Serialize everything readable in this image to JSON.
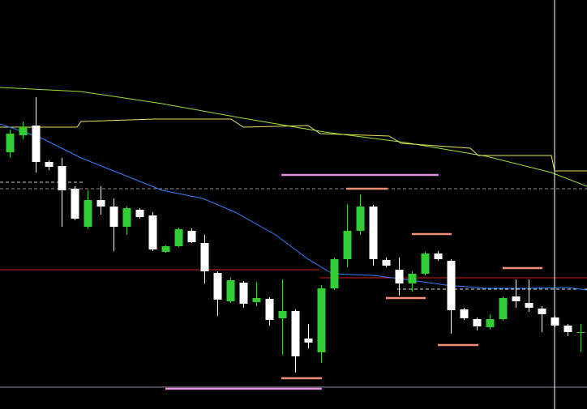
{
  "chart_data": {
    "type": "candlestick",
    "xlim": [
      -0.75,
      44.5
    ],
    "ylim": [
      0,
      505
    ],
    "up_color": "#32cd32",
    "down_color": "#ffffff",
    "wick_color": "#ffffff",
    "background": "#000000",
    "open": [
      317,
      338,
      350,
      305,
      300,
      272,
      225,
      258,
      250,
      225,
      246,
      239,
      194,
      201,
      220,
      205,
      168,
      133,
      156,
      132,
      136,
      112,
      121,
      87,
      70,
      149,
      185,
      220,
      250,
      184,
      172,
      155,
      167,
      192,
      183,
      123,
      111,
      101,
      111,
      139,
      131,
      124,
      113,
      103,
      94
    ],
    "high": [
      345,
      355,
      385,
      307,
      310,
      275,
      270,
      275,
      260,
      250,
      248,
      243,
      202,
      224,
      223,
      215,
      170,
      162,
      158,
      157,
      138,
      160,
      123,
      105,
      153,
      187,
      253,
      265,
      252,
      187,
      187,
      170,
      194,
      195,
      185,
      125,
      113,
      117,
      139,
      160,
      160,
      127,
      115,
      105,
      105
    ],
    "low": [
      310,
      333,
      292,
      295,
      225,
      233,
      222,
      240,
      195,
      215,
      235,
      195,
      193,
      200,
      205,
      155,
      115,
      131,
      125,
      127,
      103,
      67,
      45,
      75,
      57,
      147,
      175,
      215,
      177,
      175,
      140,
      145,
      165,
      183,
      93,
      110,
      97,
      98,
      109,
      125,
      120,
      95,
      101,
      90,
      70
    ],
    "close": [
      340,
      348,
      305,
      299,
      270,
      235,
      258,
      250,
      225,
      248,
      237,
      197,
      201,
      222,
      206,
      170,
      135,
      159,
      130,
      137,
      110,
      121,
      65,
      82,
      149,
      185,
      220,
      250,
      185,
      177,
      155,
      167,
      192,
      185,
      122,
      112,
      102,
      111,
      137,
      133,
      125,
      117,
      103,
      95,
      95
    ],
    "lines": [
      {
        "color": "#9be03c",
        "x": [
          -0.75,
          5.5,
          11.75,
          18,
          24.25,
          30.5,
          36.75,
          41.75,
          44.5
        ],
        "values": [
          397,
          392,
          377,
          359,
          342,
          329,
          312,
          292,
          275
        ]
      },
      {
        "color": "#e6e65a",
        "x": [
          -0.75,
          5.19,
          5.5,
          11.125,
          17.06,
          18,
          23,
          23.94,
          29.25,
          30.19,
          35.5,
          36.125,
          41.75,
          42,
          44.5
        ],
        "values": [
          348,
          348,
          355,
          358,
          358,
          348,
          350,
          340,
          337,
          328,
          322,
          313,
          313,
          294,
          294
        ]
      },
      {
        "color": "#2f7fff",
        "x": [
          -0.75,
          2.375,
          5.5,
          8.625,
          11.75,
          14.875,
          17.375,
          20.5,
          23,
          24.875,
          28,
          30.5,
          33.625,
          36.75,
          39.875,
          43,
          44.5
        ],
        "values": [
          352,
          335,
          310,
          290,
          270,
          260,
          243,
          215,
          185,
          167,
          165,
          160,
          153,
          149,
          149,
          150,
          147
        ]
      }
    ],
    "segments": [
      {
        "color": "#d02020",
        "x": [
          -0.75,
          23.9
        ],
        "value": 172,
        "dashed": false
      },
      {
        "color": "#d02020",
        "x": [
          23.9,
          44.5
        ],
        "value": 162,
        "dashed": false
      },
      {
        "color": "#909090",
        "x": [
          -0.75,
          44.5
        ],
        "value": 272,
        "dashed": true
      },
      {
        "color": "#cccccc",
        "x": [
          -0.75,
          5.8
        ],
        "value": 280,
        "dashed": true
      },
      {
        "color": "#dddddd",
        "x": [
          29.875,
          44.5
        ],
        "value": 148,
        "dashed": true
      },
      {
        "color": "#8a8a9a",
        "x": [
          -0.75,
          44.5
        ],
        "value": 27,
        "dashed": false
      },
      {
        "color": "#e08ee0",
        "x": [
          20.94,
          33.06
        ],
        "value": 289,
        "dashed": false
      },
      {
        "color": "#e08ee0",
        "x": [
          12,
          24.06
        ],
        "value": 25,
        "dashed": false
      },
      {
        "color": "#f4907a",
        "x": [
          25.94,
          29.125
        ],
        "value": 272,
        "dashed": false
      },
      {
        "color": "#f4907a",
        "x": [
          31,
          34.06
        ],
        "value": 216,
        "dashed": false
      },
      {
        "color": "#f4907a",
        "x": [
          38,
          41.06
        ],
        "value": 174,
        "dashed": false
      },
      {
        "color": "#f4907a",
        "x": [
          29,
          32.06
        ],
        "value": 137,
        "dashed": false
      },
      {
        "color": "#f4907a",
        "x": [
          33,
          36.125
        ],
        "value": 79,
        "dashed": false
      },
      {
        "color": "#f4907a",
        "x": [
          20.94,
          24.06
        ],
        "value": 38,
        "dashed": false
      }
    ],
    "cursor_x": 42,
    "cursor_color": "#ffffff"
  }
}
